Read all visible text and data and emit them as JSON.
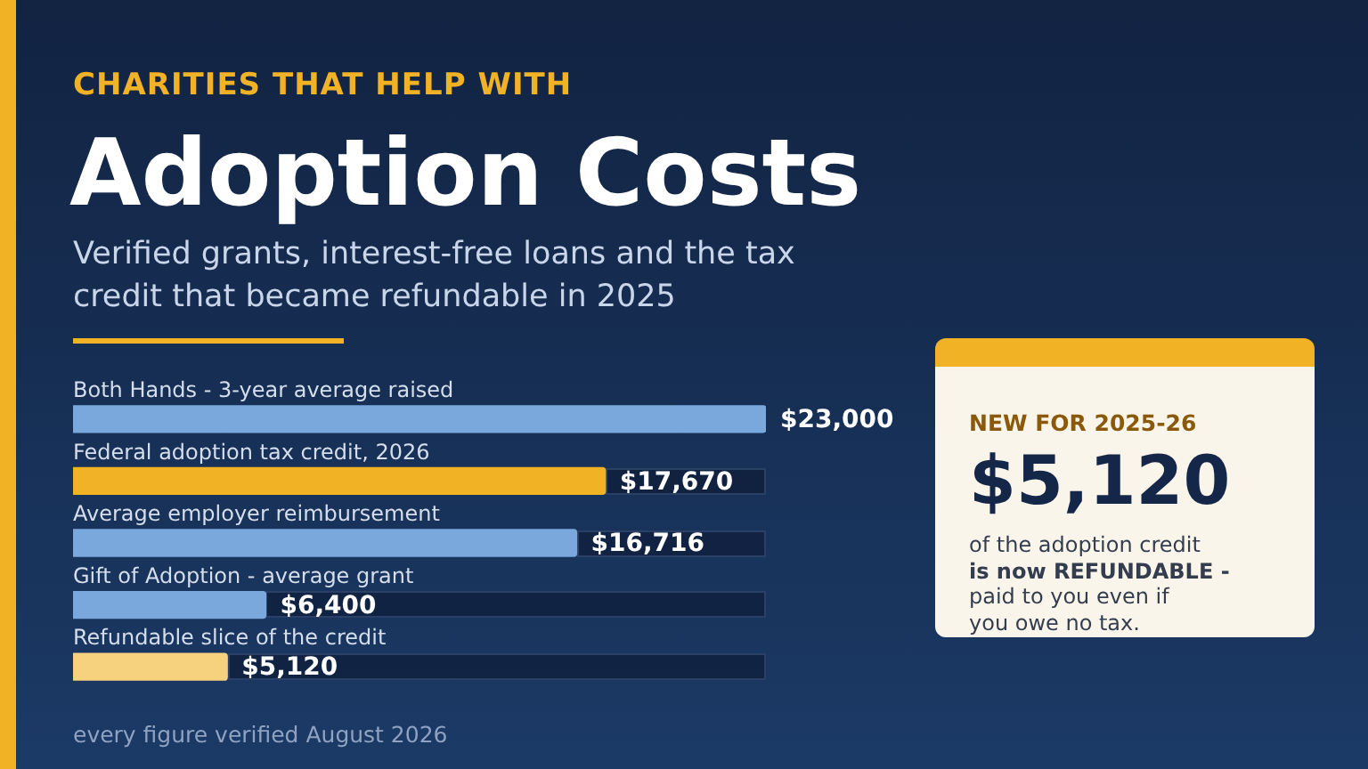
{
  "chart_data": {
    "type": "bar",
    "orientation": "horizontal",
    "title": "Adoption Costs",
    "subtitle": "Verified grants, interest-free loans and the tax credit that became refundable in 2025",
    "categories": [
      "Both Hands - 3-year average raised",
      "Federal adoption tax credit, 2026",
      "Average employer reimbursement",
      "Gift of Adoption - average grant",
      "Refundable slice of the credit"
    ],
    "values": [
      23000,
      17670,
      16716,
      6400,
      5120
    ],
    "colors": [
      "#7aa8dd",
      "#f2b225",
      "#7aa8dd",
      "#7aa8dd",
      "#f7d27e"
    ],
    "value_labels": [
      "$23,000",
      "$17,670",
      "$16,716",
      "$6,400",
      "$5,120"
    ],
    "xlim": [
      0,
      23000
    ],
    "tick_labels": false,
    "legend": false,
    "annotations": [
      "CHARITIES THAT HELP WITH",
      "NEW FOR 2025-26",
      "$5,120",
      "of the adoption credit",
      "is now REFUNDABLE -",
      "paid to you even if",
      "you owe no tax.",
      "every figure verified August 2026"
    ]
  }
}
